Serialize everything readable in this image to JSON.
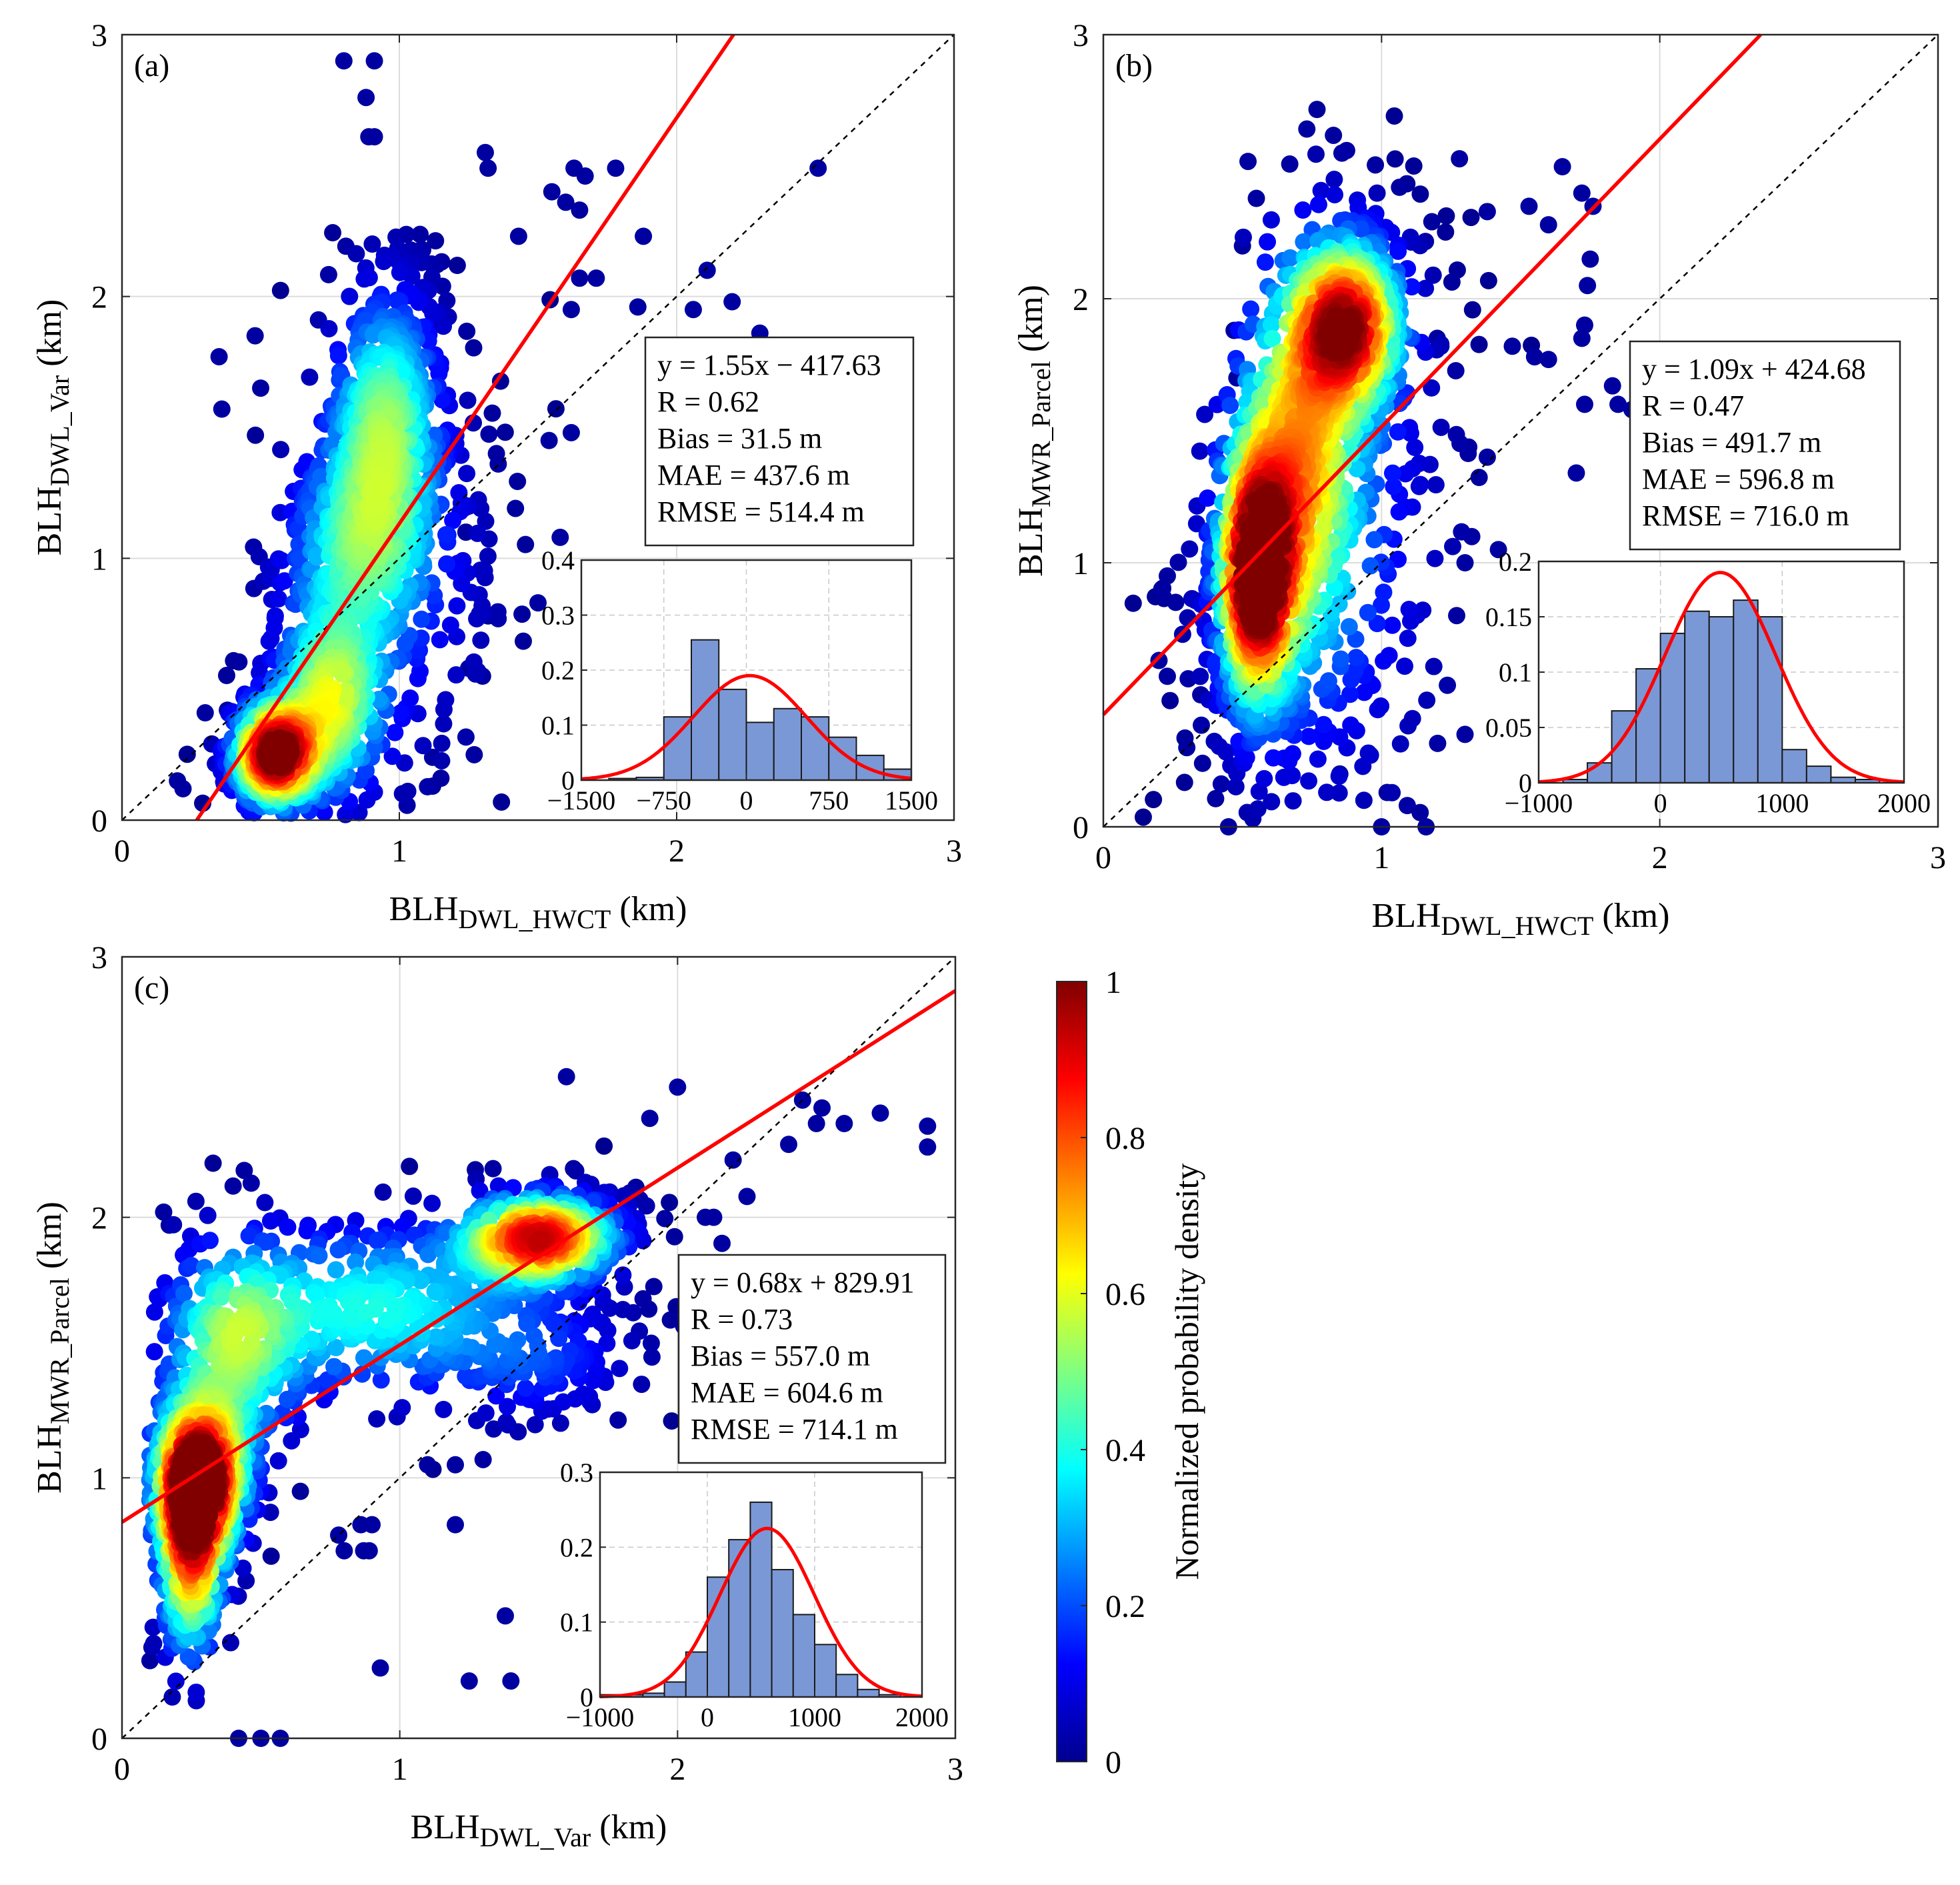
{
  "figure": {
    "colorbar": {
      "label": "Normalized probability density",
      "ticks": [
        "0",
        "0.2",
        "0.4",
        "0.6",
        "0.8",
        "1"
      ],
      "colormap": [
        "#00008f",
        "#0000ff",
        "#0080ff",
        "#00ffff",
        "#80ff80",
        "#ffff00",
        "#ff8000",
        "#ff0000",
        "#800000"
      ]
    },
    "fit_line_color": "#ff0000",
    "hist_bar_color": "#7b98d6"
  },
  "chart_data": [
    {
      "type": "scatter",
      "panel_label": "(a)",
      "xlabel": {
        "base": "BLH",
        "sub": "DWL_HWCT",
        "unit": " (km)"
      },
      "ylabel": {
        "base": "BLH",
        "sub": "DWL_Var",
        "unit": " (km)"
      },
      "xlim": [
        0,
        3
      ],
      "ylim": [
        0,
        3
      ],
      "xticks": [
        "0",
        "1",
        "2",
        "3"
      ],
      "yticks": [
        "0",
        "1",
        "2",
        "3"
      ],
      "grid": true,
      "one_to_one_line": true,
      "fit_line": {
        "slope": 1.55,
        "intercept_km": -0.41763
      },
      "stats": [
        "y = 1.55x − 417.63",
        "R = 0.62",
        "Bias = 31.5 m",
        "MAE = 437.6 m",
        "RMSE = 514.4 m"
      ],
      "clusters": [
        {
          "cx": 0.55,
          "cy": 0.25,
          "sx": 0.09,
          "sy": 0.12,
          "rho": 0.1,
          "n": 520,
          "dens": 1.0
        },
        {
          "cx": 0.75,
          "cy": 0.45,
          "sx": 0.12,
          "sy": 0.22,
          "rho": 0.2,
          "n": 260,
          "dens": 0.55
        },
        {
          "cx": 0.95,
          "cy": 1.55,
          "sx": 0.12,
          "sy": 0.3,
          "rho": 0.3,
          "n": 520,
          "dens": 0.45
        },
        {
          "cx": 0.85,
          "cy": 1.05,
          "sx": 0.16,
          "sy": 0.25,
          "rho": 0.4,
          "n": 300,
          "dens": 0.35
        },
        {
          "cx": 1.0,
          "cy": 0.9,
          "sx": 0.22,
          "sy": 0.45,
          "rho": 0.2,
          "n": 230,
          "dens": 0.12
        }
      ],
      "outliers": [
        [
          0.8,
          2.9
        ],
        [
          0.91,
          2.9
        ],
        [
          0.88,
          2.76
        ],
        [
          0.89,
          2.61
        ],
        [
          0.91,
          2.61
        ],
        [
          1.31,
          2.55
        ],
        [
          1.32,
          2.49
        ],
        [
          1.63,
          2.49
        ],
        [
          1.78,
          2.49
        ],
        [
          1.67,
          2.46
        ],
        [
          1.55,
          2.4
        ],
        [
          1.6,
          2.36
        ],
        [
          1.65,
          2.33
        ],
        [
          2.51,
          2.49
        ],
        [
          1.88,
          2.23
        ],
        [
          1.43,
          2.23
        ],
        [
          2.11,
          2.1
        ],
        [
          1.65,
          2.07
        ],
        [
          1.71,
          2.07
        ],
        [
          2.06,
          1.95
        ],
        [
          1.86,
          1.96
        ],
        [
          2.2,
          1.98
        ],
        [
          2.3,
          1.86
        ],
        [
          1.62,
          1.95
        ],
        [
          1.54,
          1.45
        ],
        [
          1.62,
          1.48
        ],
        [
          0.35,
          1.77
        ],
        [
          0.36,
          1.57
        ],
        [
          0.48,
          1.85
        ],
        [
          0.5,
          1.65
        ],
        [
          0.38,
          0.42
        ],
        [
          0.3,
          0.41
        ],
        [
          0.2,
          0.15
        ],
        [
          0.22,
          0.12
        ],
        [
          1.5,
          0.83
        ],
        [
          1.58,
          1.08
        ],
        [
          1.24,
          1.1
        ],
        [
          1.35,
          1.4
        ],
        [
          1.25,
          0.58
        ],
        [
          1.32,
          0.78
        ],
        [
          1.3,
          0.55
        ],
        [
          1.27,
          0.25
        ],
        [
          1.15,
          0.16
        ],
        [
          1.12,
          0.13
        ],
        [
          1.12,
          0.24
        ]
      ]
    },
    {
      "type": "scatter",
      "panel_label": "(b)",
      "xlabel": {
        "base": "BLH",
        "sub": "DWL_HWCT",
        "unit": " (km)"
      },
      "ylabel": {
        "base": "BLH",
        "sub": "MWR_Parcel",
        "unit": " (km)"
      },
      "xlim": [
        0,
        3
      ],
      "ylim": [
        0,
        3
      ],
      "xticks": [
        "0",
        "1",
        "2",
        "3"
      ],
      "yticks": [
        "0",
        "1",
        "2",
        "3"
      ],
      "grid": true,
      "one_to_one_line": true,
      "fit_line": {
        "slope": 1.09,
        "intercept_km": 0.42468
      },
      "stats": [
        "y = 1.09x + 424.68",
        "R = 0.47",
        "Bias = 491.7 m",
        "MAE = 596.8 m",
        "RMSE = 716.0 m"
      ],
      "clusters": [
        {
          "cx": 0.55,
          "cy": 0.95,
          "sx": 0.08,
          "sy": 0.3,
          "rho": 0.1,
          "n": 650,
          "dens": 1.0
        },
        {
          "cx": 0.88,
          "cy": 1.9,
          "sx": 0.12,
          "sy": 0.2,
          "rho": 0.3,
          "n": 500,
          "dens": 0.85
        },
        {
          "cx": 0.7,
          "cy": 1.4,
          "sx": 0.13,
          "sy": 0.45,
          "rho": 0.4,
          "n": 450,
          "dens": 0.55
        },
        {
          "cx": 0.8,
          "cy": 1.1,
          "sx": 0.25,
          "sy": 0.6,
          "rho": 0.3,
          "n": 380,
          "dens": 0.2
        }
      ],
      "outliers": [
        [
          0.23,
          0.95
        ],
        [
          0.21,
          0.9
        ],
        [
          0.26,
          0.85
        ],
        [
          0.2,
          0.63
        ],
        [
          0.23,
          0.57
        ],
        [
          0.3,
          0.3
        ],
        [
          0.35,
          0.5
        ],
        [
          0.45,
          0.0
        ],
        [
          1.0,
          0.0
        ],
        [
          1.16,
          0.0
        ],
        [
          0.85,
          0.2
        ],
        [
          1.02,
          0.13
        ],
        [
          1.3,
          0.35
        ],
        [
          1.27,
          0.8
        ],
        [
          1.3,
          1.0
        ],
        [
          1.38,
          1.4
        ],
        [
          1.42,
          1.05
        ],
        [
          1.7,
          1.34
        ],
        [
          1.73,
          1.6
        ],
        [
          1.85,
          1.6
        ],
        [
          1.83,
          1.67
        ],
        [
          1.9,
          1.58
        ],
        [
          1.55,
          1.78
        ],
        [
          1.6,
          1.77
        ],
        [
          1.47,
          1.82
        ],
        [
          1.53,
          2.35
        ],
        [
          1.6,
          2.28
        ],
        [
          1.72,
          2.4
        ],
        [
          1.65,
          2.5
        ],
        [
          1.76,
          2.35
        ],
        [
          1.75,
          2.15
        ],
        [
          1.74,
          2.05
        ],
        [
          1.73,
          1.9
        ],
        [
          1.72,
          1.85
        ],
        [
          1.28,
          2.53
        ],
        [
          1.38,
          2.33
        ],
        [
          1.2,
          1.85
        ],
        [
          0.52,
          2.52
        ],
        [
          0.67,
          2.51
        ],
        [
          0.55,
          2.38
        ],
        [
          0.5,
          2.2
        ],
        [
          0.47,
          1.88
        ],
        [
          0.48,
          1.7
        ]
      ]
    },
    {
      "type": "scatter",
      "panel_label": "(c)",
      "xlabel": {
        "base": "BLH",
        "sub": "DWL_Var",
        "unit": " (km)"
      },
      "ylabel": {
        "base": "BLH",
        "sub": "MWR_Parcel",
        "unit": " (km)"
      },
      "xlim": [
        0,
        3
      ],
      "ylim": [
        0,
        3
      ],
      "xticks": [
        "0",
        "1",
        "2",
        "3"
      ],
      "yticks": [
        "0",
        "1",
        "2",
        "3"
      ],
      "grid": true,
      "one_to_one_line": true,
      "fit_line": {
        "slope": 0.68,
        "intercept_km": 0.82991
      },
      "stats": [
        "y = 0.68x + 829.91",
        "R = 0.73",
        "Bias = 557.0 m",
        "MAE = 604.6 m",
        "RMSE = 714.1 m"
      ],
      "clusters": [
        {
          "cx": 0.28,
          "cy": 1.0,
          "sx": 0.1,
          "sy": 0.18,
          "rho": 0.2,
          "n": 650,
          "dens": 1.0
        },
        {
          "cx": 0.25,
          "cy": 0.7,
          "sx": 0.07,
          "sy": 0.25,
          "rho": 0.1,
          "n": 250,
          "dens": 0.7
        },
        {
          "cx": 1.5,
          "cy": 1.92,
          "sx": 0.17,
          "sy": 0.1,
          "rho": 0.3,
          "n": 500,
          "dens": 0.9
        },
        {
          "cx": 0.9,
          "cy": 1.65,
          "sx": 0.35,
          "sy": 0.2,
          "rho": 0.3,
          "n": 380,
          "dens": 0.4
        },
        {
          "cx": 0.4,
          "cy": 1.5,
          "sx": 0.15,
          "sy": 0.25,
          "rho": 0.0,
          "n": 230,
          "dens": 0.45
        },
        {
          "cx": 1.5,
          "cy": 1.45,
          "sx": 0.22,
          "sy": 0.15,
          "rho": 0.2,
          "n": 160,
          "dens": 0.15
        }
      ],
      "outliers": [
        [
          0.42,
          0.0
        ],
        [
          0.5,
          0.0
        ],
        [
          0.57,
          0.0
        ],
        [
          0.93,
          0.27
        ],
        [
          1.25,
          0.22
        ],
        [
          1.4,
          0.22
        ],
        [
          1.38,
          0.47
        ],
        [
          1.2,
          0.82
        ],
        [
          0.87,
          0.72
        ],
        [
          0.86,
          0.82
        ],
        [
          0.9,
          0.82
        ],
        [
          0.89,
          0.72
        ],
        [
          0.8,
          0.72
        ],
        [
          0.78,
          0.78
        ],
        [
          1.1,
          1.05
        ],
        [
          1.2,
          1.05
        ],
        [
          1.3,
          1.07
        ],
        [
          2.45,
          2.45
        ],
        [
          2.5,
          2.36
        ],
        [
          2.52,
          2.42
        ],
        [
          2.6,
          2.36
        ],
        [
          2.73,
          2.4
        ],
        [
          2.9,
          2.35
        ],
        [
          2.9,
          2.27
        ],
        [
          2.4,
          2.28
        ],
        [
          2.2,
          2.22
        ],
        [
          2.25,
          2.08
        ],
        [
          2.1,
          2.0
        ],
        [
          2.13,
          2.0
        ],
        [
          2.16,
          1.9
        ],
        [
          1.6,
          2.54
        ],
        [
          2.0,
          2.5
        ],
        [
          1.9,
          2.38
        ],
        [
          0.4,
          2.12
        ],
        [
          0.44,
          2.18
        ],
        [
          0.15,
          2.02
        ],
        [
          0.17,
          1.97
        ]
      ]
    }
  ],
  "insets": [
    {
      "type": "bar",
      "xlim": [
        -1500,
        1500
      ],
      "ylim": [
        0,
        0.4
      ],
      "xticks": [
        "−1500",
        "−750",
        "0",
        "750",
        "1500"
      ],
      "yticks": [
        "0",
        "0.1",
        "0.2",
        "0.3",
        "0.4"
      ],
      "bin_edges": [
        -1500,
        -1250,
        -1000,
        -750,
        -500,
        -250,
        0,
        250,
        500,
        750,
        1000,
        1250,
        1500
      ],
      "values": [
        0.0,
        0.003,
        0.005,
        0.115,
        0.255,
        0.165,
        0.105,
        0.13,
        0.115,
        0.078,
        0.045,
        0.02
      ],
      "fit": {
        "mean": 31.5,
        "sd": 514.4,
        "peak": 0.19
      }
    },
    {
      "type": "bar",
      "xlim": [
        -1000,
        2000
      ],
      "ylim": [
        0,
        0.2
      ],
      "xticks": [
        "−1000",
        "0",
        "1000",
        "2000"
      ],
      "yticks": [
        "0",
        "0.05",
        "0.1",
        "0.15",
        "0.2"
      ],
      "bin_edges": [
        -1000,
        -800,
        -600,
        -400,
        -200,
        0,
        200,
        400,
        600,
        800,
        1000,
        1200,
        1400,
        1600,
        1800,
        2000
      ],
      "values": [
        0.0,
        0.003,
        0.018,
        0.065,
        0.103,
        0.135,
        0.155,
        0.15,
        0.165,
        0.15,
        0.03,
        0.015,
        0.005,
        0.003,
        0.0
      ],
      "fit": {
        "mean": 491.7,
        "sd": 455.0,
        "peak": 0.19
      }
    },
    {
      "type": "bar",
      "xlim": [
        -1000,
        2000
      ],
      "ylim": [
        0,
        0.3
      ],
      "xticks": [
        "−1000",
        "0",
        "1000",
        "2000"
      ],
      "yticks": [
        "0",
        "0.1",
        "0.2",
        "0.3"
      ],
      "bin_edges": [
        -1000,
        -800,
        -600,
        -400,
        -200,
        0,
        200,
        400,
        600,
        800,
        1000,
        1200,
        1400,
        1600,
        1800,
        2000
      ],
      "values": [
        0.003,
        0.003,
        0.005,
        0.02,
        0.06,
        0.16,
        0.21,
        0.26,
        0.17,
        0.11,
        0.07,
        0.03,
        0.01,
        0.003,
        0.0
      ],
      "fit": {
        "mean": 557.0,
        "sd": 440.0,
        "peak": 0.225
      }
    }
  ]
}
